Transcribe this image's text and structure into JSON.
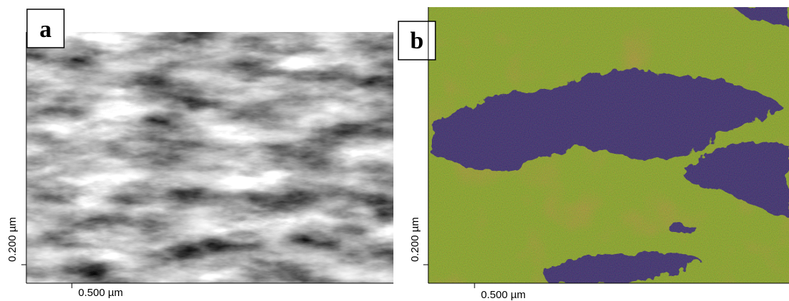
{
  "panels": [
    {
      "label": "a",
      "x_scale": "0.500 µm",
      "y_scale": "0.200 µm"
    },
    {
      "label": "b",
      "x_scale": "0.500 µm",
      "y_scale": "0.200 µm"
    }
  ]
}
